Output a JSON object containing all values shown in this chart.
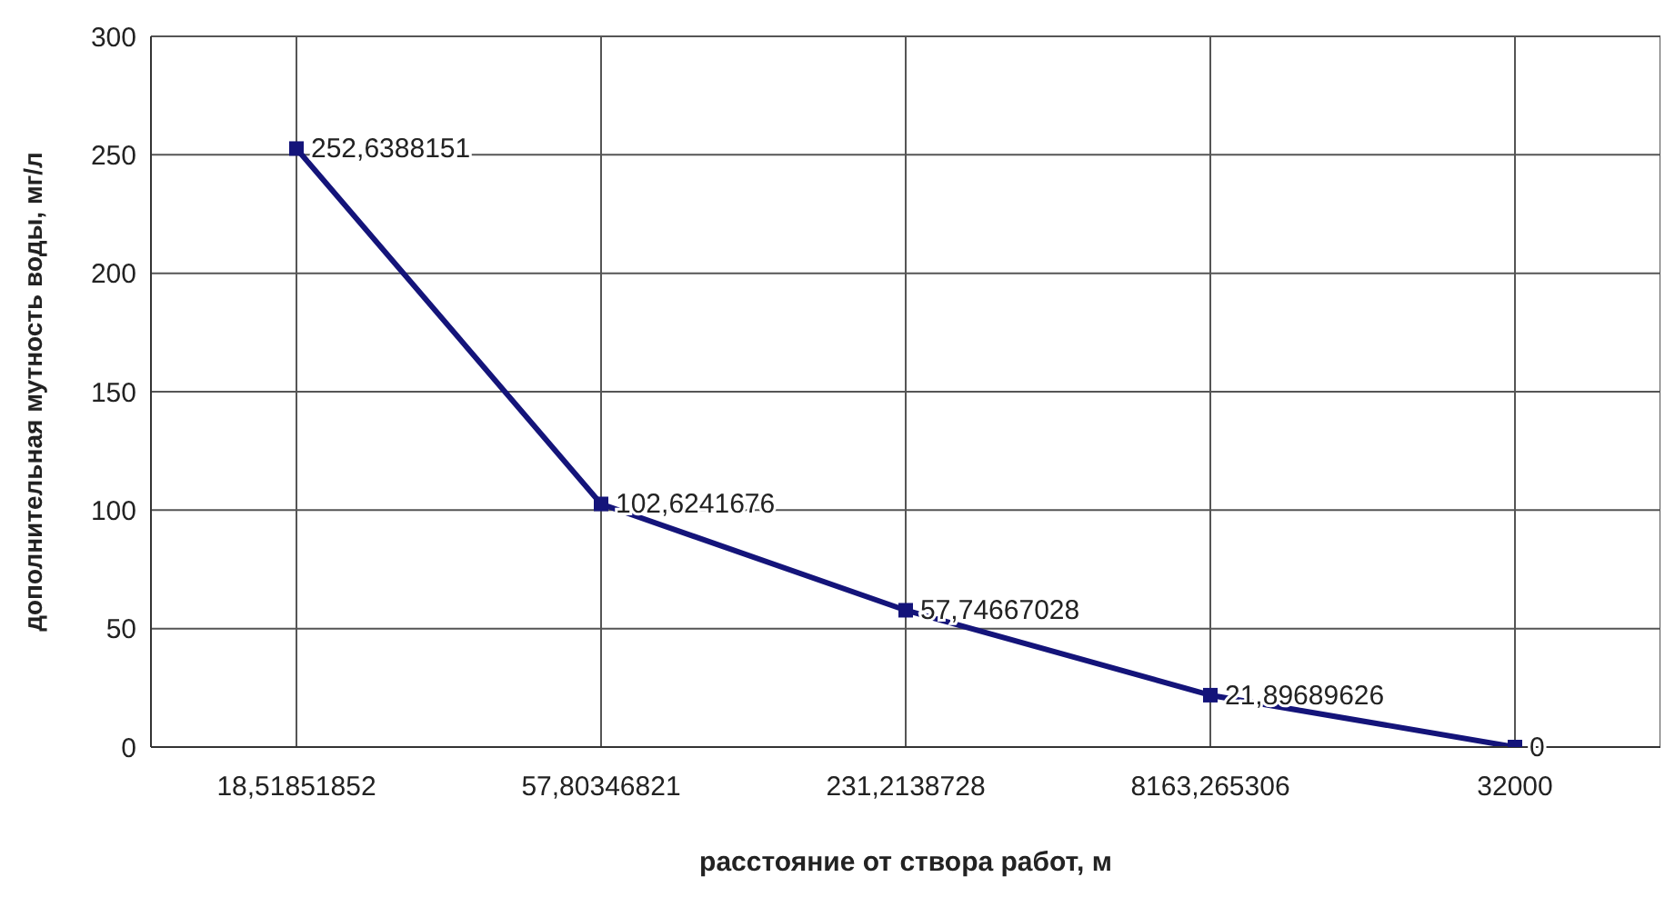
{
  "chart_data": {
    "type": "line",
    "xlabel": "расстояние от створа работ, м",
    "ylabel": "дополнительная мутность воды, мг/л",
    "categories": [
      "18,51851852",
      "57,80346821",
      "231,2138728",
      "8163,265306",
      "32000"
    ],
    "series": [
      {
        "color": "#14147a",
        "values": [
          252.6388151,
          102.6241676,
          57.74667028,
          21.89689626,
          0
        ],
        "value_labels": [
          "252,6388151",
          "102,6241676",
          "57,74667028",
          "21,89689626",
          "0"
        ]
      }
    ],
    "ylim": [
      0,
      300
    ],
    "yticks": [
      0,
      50,
      100,
      150,
      200,
      250,
      300
    ],
    "grid": true,
    "marker": "square",
    "line_style": "solid"
  }
}
